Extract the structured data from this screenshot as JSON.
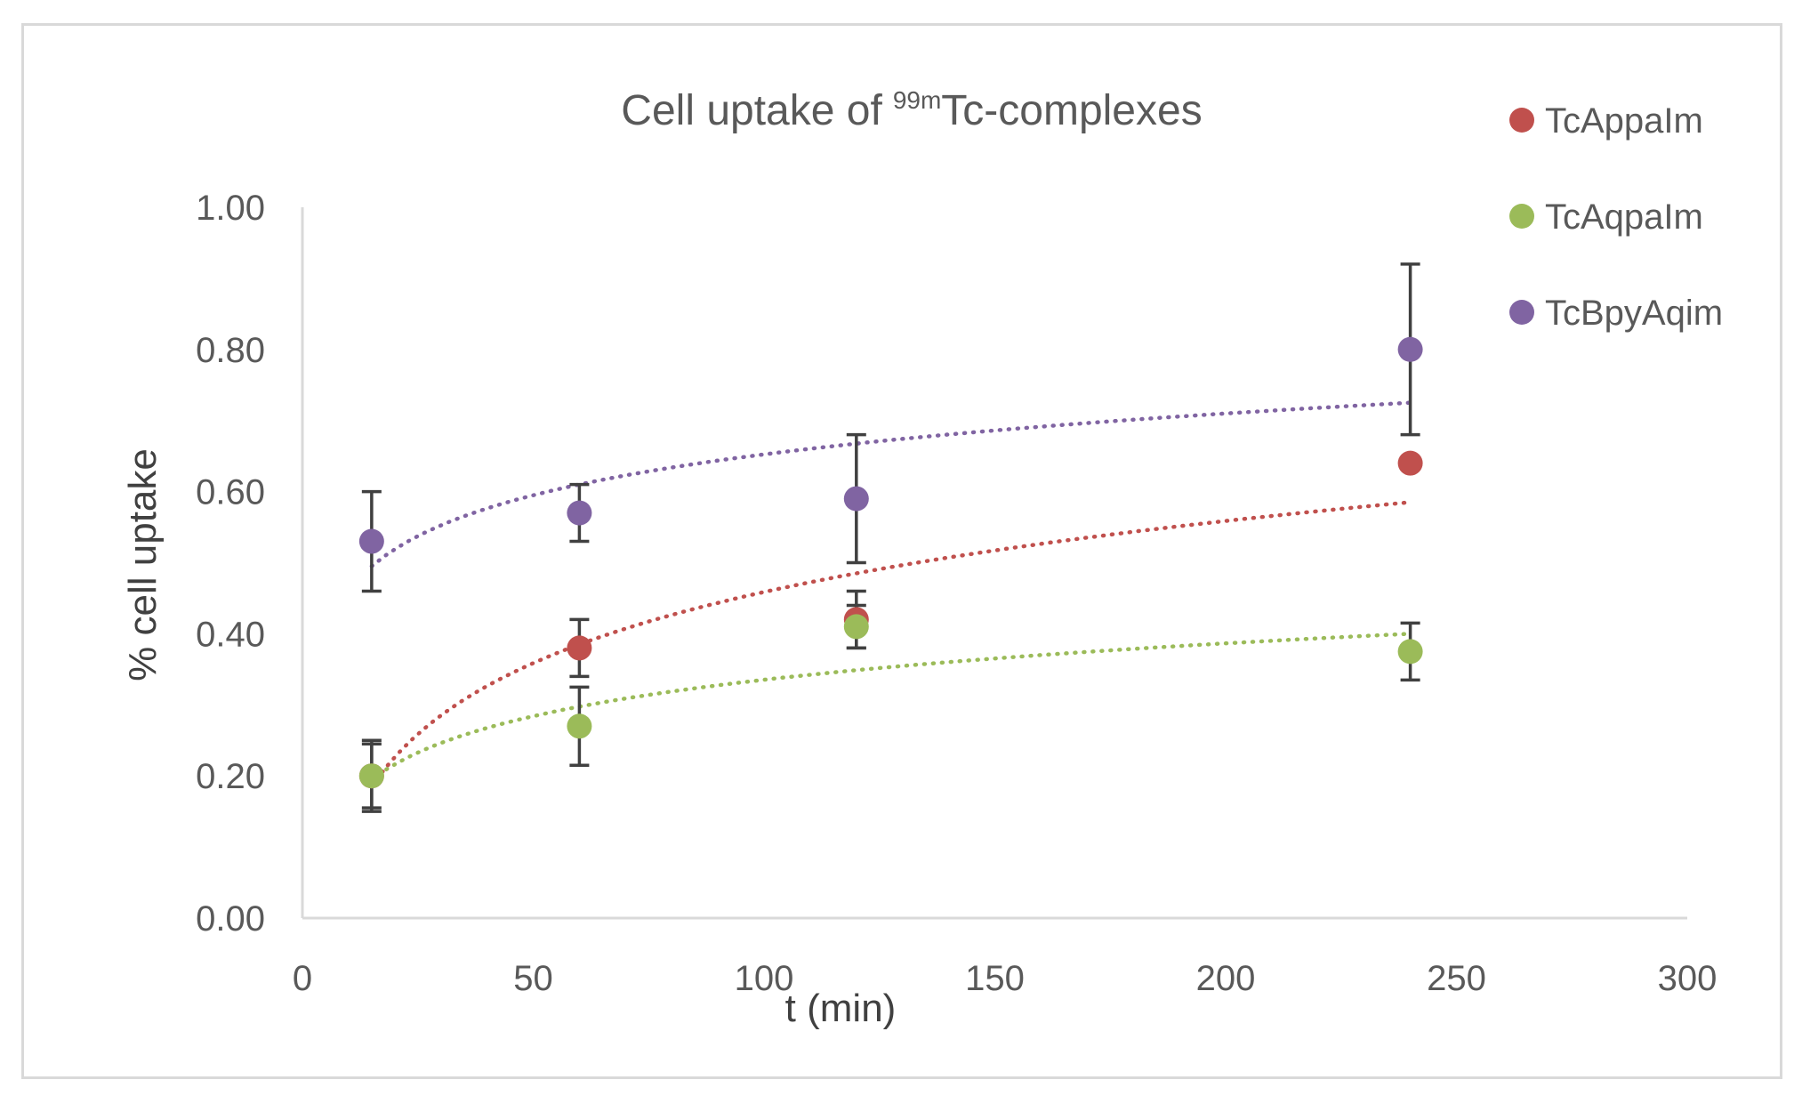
{
  "chart_data": {
    "type": "scatter",
    "title": "Cell uptake of",
    "title_sup": "99m",
    "title_suffix": "Tc-complexes",
    "xlabel": "t (min)",
    "ylabel": "% cell uptake",
    "xlim": [
      0,
      300
    ],
    "ylim": [
      0,
      1.0
    ],
    "xticks": [
      "0",
      "50",
      "100",
      "150",
      "200",
      "250",
      "300"
    ],
    "yticks": [
      "0.00",
      "0.20",
      "0.40",
      "0.60",
      "0.80",
      "1.00"
    ],
    "legend_position": "right",
    "trendline": "logarithmic (dotted)",
    "series": [
      {
        "name": "TcAppaIm",
        "color": "#c0504d",
        "x": [
          15,
          60,
          120,
          240
        ],
        "y": [
          0.2,
          0.38,
          0.42,
          0.64
        ],
        "err": [
          0.045,
          0.04,
          0.04,
          0.0
        ],
        "trend_start": 0.185,
        "trend_end": 0.585
      },
      {
        "name": "TcAqpaIm",
        "color": "#9bbb59",
        "x": [
          15,
          60,
          120,
          240
        ],
        "y": [
          0.2,
          0.27,
          0.41,
          0.375
        ],
        "err": [
          0.05,
          0.055,
          0.03,
          0.04
        ],
        "trend_start": 0.195,
        "trend_end": 0.4
      },
      {
        "name": "TcBpyAqim",
        "color": "#8064a2",
        "x": [
          15,
          60,
          120,
          240
        ],
        "y": [
          0.53,
          0.57,
          0.59,
          0.8
        ],
        "err": [
          0.07,
          0.04,
          0.09,
          0.12
        ],
        "trend_start": 0.495,
        "trend_end": 0.725
      }
    ]
  }
}
